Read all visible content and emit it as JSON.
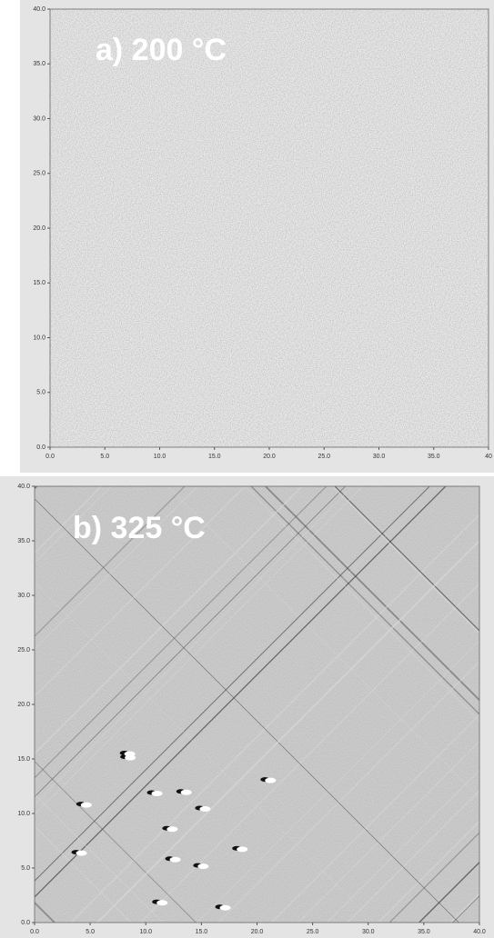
{
  "chart_data": [
    {
      "type": "image",
      "title": "a) 200 °C",
      "xlim": [
        0,
        40
      ],
      "ylim": [
        0,
        40
      ],
      "xticks": [
        {
          "value": 0,
          "label": "0.0"
        },
        {
          "value": 5,
          "label": "5.0"
        },
        {
          "value": 10,
          "label": "10.0"
        },
        {
          "value": 15,
          "label": "15.0"
        },
        {
          "value": 20,
          "label": "20.0"
        },
        {
          "value": 25,
          "label": "25.0"
        },
        {
          "value": 30,
          "label": "30.0"
        },
        {
          "value": 35,
          "label": "35.0"
        },
        {
          "value": 40,
          "label": "40"
        }
      ],
      "yticks": [
        {
          "value": 0,
          "label": "0.0"
        },
        {
          "value": 5,
          "label": "5.0"
        },
        {
          "value": 10,
          "label": "10.0"
        },
        {
          "value": 15,
          "label": "15.0"
        },
        {
          "value": 20,
          "label": "20.0"
        },
        {
          "value": 25,
          "label": "25.0"
        },
        {
          "value": 30,
          "label": "30.0"
        },
        {
          "value": 35,
          "label": "35.0"
        },
        {
          "value": 40,
          "label": "40.0"
        }
      ]
    },
    {
      "type": "image",
      "title": "b) 325 °C",
      "xlim": [
        0,
        40
      ],
      "ylim": [
        0,
        40
      ],
      "xticks": [
        {
          "value": 0,
          "label": "0.0"
        },
        {
          "value": 5,
          "label": "5.0"
        },
        {
          "value": 10,
          "label": "10.0"
        },
        {
          "value": 15,
          "label": "15.0"
        },
        {
          "value": 20,
          "label": "20.0"
        },
        {
          "value": 25,
          "label": "25.0"
        },
        {
          "value": 30,
          "label": "30.0"
        },
        {
          "value": 35,
          "label": "35.0"
        },
        {
          "value": 40,
          "label": "40.0"
        }
      ],
      "yticks": [
        {
          "value": 0,
          "label": "0.0"
        },
        {
          "value": 5,
          "label": "5.0"
        },
        {
          "value": 10,
          "label": "10.0"
        },
        {
          "value": 15,
          "label": "15.0"
        },
        {
          "value": 20,
          "label": "20.0"
        },
        {
          "value": 25,
          "label": "25.0"
        },
        {
          "value": 30,
          "label": "30.0"
        },
        {
          "value": 35,
          "label": "35.0"
        },
        {
          "value": 40,
          "label": "40.0"
        }
      ]
    }
  ]
}
